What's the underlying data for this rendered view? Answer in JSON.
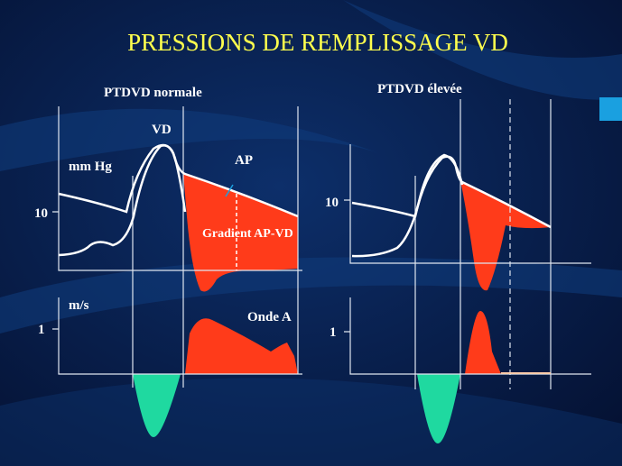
{
  "title": "PRESSIONS DE REMPLISSAGE VD",
  "left": {
    "label": "PTDVD normale",
    "vd": "VD",
    "unit_pressure": "mm Hg",
    "ap": "AP",
    "tick_pressure": "10",
    "gradient": "Gradient AP-VD",
    "unit_velocity": "m/s",
    "tick_velocity": "1",
    "wave": "Onde A"
  },
  "right": {
    "label": "PTDVD élevée",
    "tick_pressure": "10",
    "tick_velocity": "1"
  }
}
